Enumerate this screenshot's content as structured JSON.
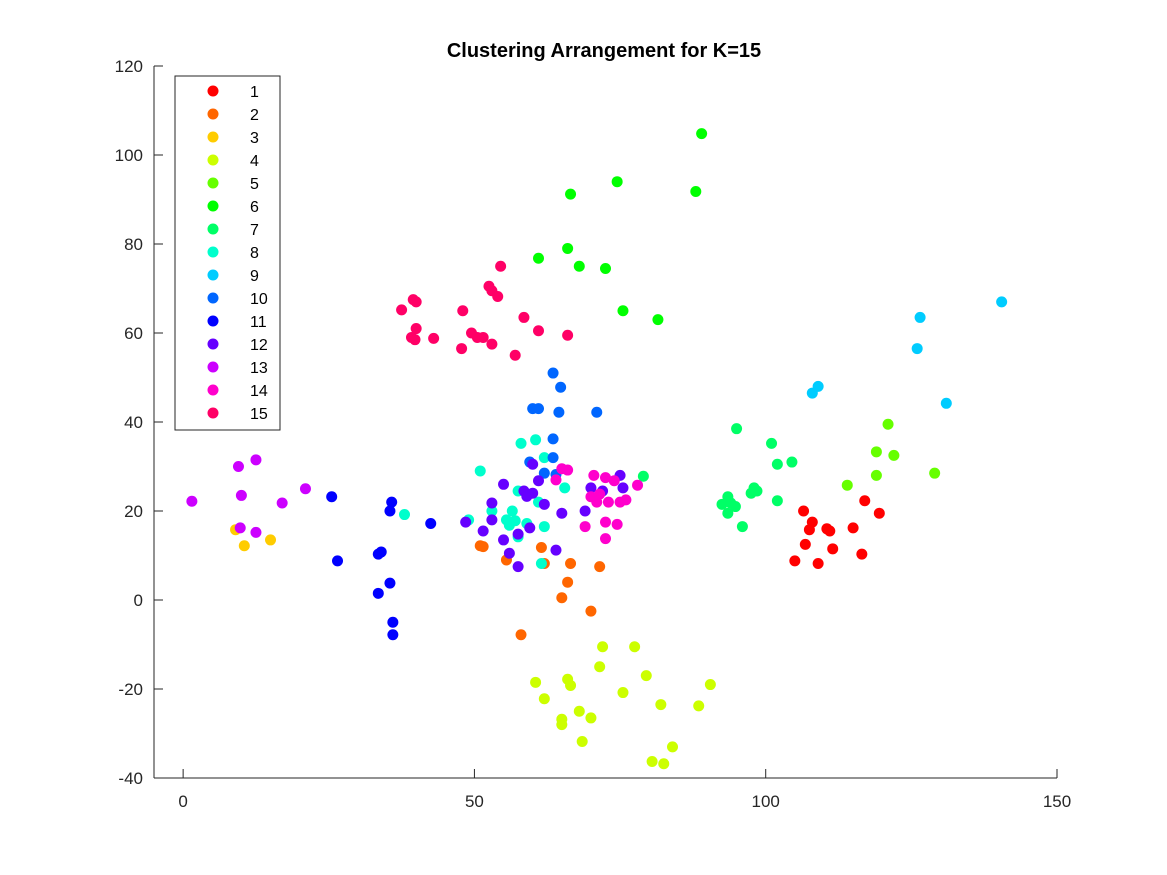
{
  "chart_data": {
    "type": "scatter",
    "title": "Clustering Arrangement for K=15",
    "xlabel": "",
    "ylabel": "",
    "xlim": [
      -5,
      150
    ],
    "ylim": [
      -40,
      120
    ],
    "xticks": [
      0,
      50,
      100,
      150
    ],
    "yticks": [
      -40,
      -20,
      0,
      20,
      40,
      60,
      80,
      100,
      120
    ],
    "grid": false,
    "legend": "top-left",
    "series": [
      {
        "name": "1",
        "color": "#ff0000",
        "points": [
          [
            106.5,
            20
          ],
          [
            107.5,
            15.8
          ],
          [
            108,
            17.5
          ],
          [
            110.5,
            16
          ],
          [
            111,
            15.5
          ],
          [
            106.8,
            12.5
          ],
          [
            111.5,
            11.5
          ],
          [
            105,
            8.8
          ],
          [
            109,
            8.2
          ],
          [
            115,
            16.2
          ],
          [
            117,
            22.3
          ],
          [
            119.5,
            19.5
          ],
          [
            116.5,
            10.3
          ]
        ]
      },
      {
        "name": "2",
        "color": "#ff6600",
        "points": [
          [
            51,
            12.2
          ],
          [
            51.5,
            12
          ],
          [
            55.5,
            9
          ],
          [
            61.5,
            11.8
          ],
          [
            62,
            8.2
          ],
          [
            66.5,
            8.2
          ],
          [
            71.5,
            7.5
          ],
          [
            66,
            4
          ],
          [
            65,
            0.5
          ],
          [
            70,
            -2.5
          ],
          [
            58,
            -7.8
          ]
        ]
      },
      {
        "name": "3",
        "color": "#ffcc00",
        "points": [
          [
            9,
            15.8
          ],
          [
            10.5,
            12.2
          ],
          [
            15,
            13.5
          ]
        ]
      },
      {
        "name": "4",
        "color": "#ccff00",
        "points": [
          [
            72,
            -10.5
          ],
          [
            77.5,
            -10.5
          ],
          [
            71.5,
            -15
          ],
          [
            79.5,
            -17
          ],
          [
            90.5,
            -19
          ],
          [
            60.5,
            -18.5
          ],
          [
            66,
            -17.8
          ],
          [
            66.5,
            -19.2
          ],
          [
            75.5,
            -20.8
          ],
          [
            62,
            -22.2
          ],
          [
            82,
            -23.5
          ],
          [
            88.5,
            -23.8
          ],
          [
            68,
            -25
          ],
          [
            65,
            -26.8
          ],
          [
            70,
            -26.5
          ],
          [
            65,
            -28
          ],
          [
            68.5,
            -31.8
          ],
          [
            84,
            -33
          ],
          [
            80.5,
            -36.3
          ],
          [
            82.5,
            -36.8
          ]
        ]
      },
      {
        "name": "5",
        "color": "#66ff00",
        "points": [
          [
            121,
            39.5
          ],
          [
            119,
            33.3
          ],
          [
            122,
            32.5
          ],
          [
            114,
            25.8
          ],
          [
            119,
            28
          ],
          [
            129,
            28.5
          ]
        ]
      },
      {
        "name": "6",
        "color": "#00ff00",
        "points": [
          [
            89,
            104.8
          ],
          [
            74.5,
            94
          ],
          [
            88,
            91.8
          ],
          [
            66.5,
            91.2
          ],
          [
            66,
            79
          ],
          [
            61,
            76.8
          ],
          [
            68,
            75
          ],
          [
            72.5,
            74.5
          ],
          [
            75.5,
            65
          ],
          [
            81.5,
            63
          ]
        ]
      },
      {
        "name": "7",
        "color": "#00ff66",
        "points": [
          [
            95,
            38.5
          ],
          [
            101,
            35.2
          ],
          [
            102,
            30.5
          ],
          [
            104.5,
            31
          ],
          [
            98,
            25.2
          ],
          [
            98.5,
            24.5
          ],
          [
            97.5,
            24
          ],
          [
            93.5,
            23.2
          ],
          [
            92.5,
            21.5
          ],
          [
            94,
            21.8
          ],
          [
            94.8,
            21
          ],
          [
            102,
            22.3
          ],
          [
            93.5,
            19.5
          ],
          [
            96,
            16.5
          ],
          [
            79,
            27.8
          ]
        ]
      },
      {
        "name": "8",
        "color": "#00ffcc",
        "points": [
          [
            58,
            35.2
          ],
          [
            60.5,
            36
          ],
          [
            51,
            29
          ],
          [
            57.5,
            24.5
          ],
          [
            61,
            22
          ],
          [
            53,
            20
          ],
          [
            56.5,
            20
          ],
          [
            55.5,
            18
          ],
          [
            56,
            16.8
          ],
          [
            57,
            17.8
          ],
          [
            59,
            17.2
          ],
          [
            62,
            16.5
          ],
          [
            57.5,
            14.2
          ],
          [
            61.5,
            8.2
          ],
          [
            49,
            18
          ],
          [
            38,
            19.2
          ],
          [
            65.5,
            25.2
          ],
          [
            62,
            32
          ]
        ]
      },
      {
        "name": "9",
        "color": "#00ccff",
        "points": [
          [
            140.5,
            67
          ],
          [
            126.5,
            63.5
          ],
          [
            126,
            56.5
          ],
          [
            109,
            48
          ],
          [
            108,
            46.5
          ],
          [
            131,
            44.2
          ]
        ]
      },
      {
        "name": "10",
        "color": "#0066ff",
        "points": [
          [
            63.5,
            51
          ],
          [
            64.8,
            47.8
          ],
          [
            60,
            43
          ],
          [
            61,
            43
          ],
          [
            64.5,
            42.2
          ],
          [
            71,
            42.2
          ],
          [
            63.5,
            36.2
          ],
          [
            59.5,
            31
          ],
          [
            63.5,
            32
          ],
          [
            62,
            28.5
          ],
          [
            64,
            28.2
          ]
        ]
      },
      {
        "name": "11",
        "color": "#0000ff",
        "points": [
          [
            25.5,
            23.2
          ],
          [
            35.8,
            22
          ],
          [
            35.5,
            20
          ],
          [
            42.5,
            17.2
          ],
          [
            33.5,
            10.3
          ],
          [
            34,
            10.8
          ],
          [
            26.5,
            8.8
          ],
          [
            35.5,
            3.8
          ],
          [
            33.5,
            1.5
          ],
          [
            36,
            -5
          ],
          [
            36,
            -7.8
          ]
        ]
      },
      {
        "name": "12",
        "color": "#6600ff",
        "points": [
          [
            58.5,
            24.5
          ],
          [
            55,
            26
          ],
          [
            60,
            30.5
          ],
          [
            60,
            24
          ],
          [
            61,
            26.8
          ],
          [
            59,
            23.3
          ],
          [
            62,
            21.5
          ],
          [
            53,
            21.8
          ],
          [
            48.5,
            17.5
          ],
          [
            53,
            18
          ],
          [
            51.5,
            15.5
          ],
          [
            55,
            13.5
          ],
          [
            57.5,
            14.8
          ],
          [
            59.5,
            16.2
          ],
          [
            56,
            10.5
          ],
          [
            57.5,
            7.5
          ],
          [
            64,
            11.2
          ],
          [
            65,
            19.5
          ],
          [
            69,
            20
          ],
          [
            75,
            28
          ],
          [
            72,
            24.5
          ],
          [
            70,
            25.2
          ],
          [
            75.5,
            25.2
          ]
        ]
      },
      {
        "name": "13",
        "color": "#cc00ff",
        "points": [
          [
            1.5,
            22.2
          ],
          [
            9.5,
            30
          ],
          [
            12.5,
            31.5
          ],
          [
            10,
            23.5
          ],
          [
            21,
            25
          ],
          [
            17,
            21.8
          ],
          [
            9.8,
            16.2
          ],
          [
            12.5,
            15.2
          ]
        ]
      },
      {
        "name": "14",
        "color": "#ff00cc",
        "points": [
          [
            65,
            29.5
          ],
          [
            66,
            29.2
          ],
          [
            70.5,
            28
          ],
          [
            72.5,
            27.5
          ],
          [
            74,
            26.8
          ],
          [
            78,
            25.8
          ],
          [
            70,
            23.2
          ],
          [
            71.5,
            23.8
          ],
          [
            71,
            22
          ],
          [
            73,
            22
          ],
          [
            75,
            22
          ],
          [
            76,
            22.5
          ],
          [
            72.5,
            17.5
          ],
          [
            74.5,
            17
          ],
          [
            69,
            16.5
          ],
          [
            72.5,
            13.8
          ],
          [
            64,
            27
          ]
        ]
      },
      {
        "name": "15",
        "color": "#ff0066",
        "points": [
          [
            54.5,
            75
          ],
          [
            52.5,
            70.5
          ],
          [
            53,
            69.5
          ],
          [
            54,
            68.2
          ],
          [
            39.5,
            67.5
          ],
          [
            40,
            67
          ],
          [
            37.5,
            65.2
          ],
          [
            48,
            65
          ],
          [
            58.5,
            63.5
          ],
          [
            61,
            60.5
          ],
          [
            66,
            59.5
          ],
          [
            40,
            61
          ],
          [
            49.5,
            60
          ],
          [
            50.5,
            59
          ],
          [
            51.5,
            59
          ],
          [
            39.2,
            59
          ],
          [
            39.8,
            58.5
          ],
          [
            43,
            58.8
          ],
          [
            53,
            57.5
          ],
          [
            47.8,
            56.5
          ],
          [
            57,
            55
          ]
        ]
      }
    ]
  }
}
